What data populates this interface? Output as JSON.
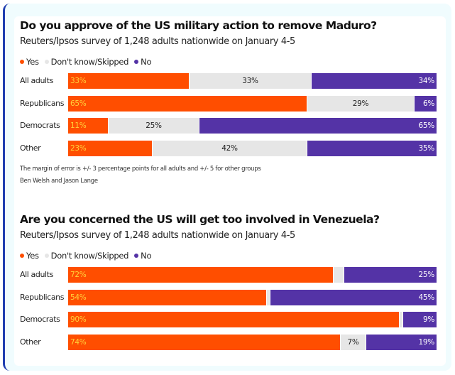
{
  "colors": {
    "yes": "#ff4e00",
    "dont_know": "#e6e6e6",
    "no": "#5433a6"
  },
  "legend": [
    {
      "key": "yes",
      "label": "Yes"
    },
    {
      "key": "dont_know",
      "label": "Don't know/Skipped"
    },
    {
      "key": "no",
      "label": "No"
    }
  ],
  "chart_data": [
    {
      "type": "bar",
      "orientation": "horizontal-stacked-100",
      "title": "Do you approve of the US military action to remove Maduro?",
      "subtitle": "Reuters/Ipsos survey of 1,248 adults nationwide on January 4-5",
      "legend_position": "top-left",
      "categories": [
        "All adults",
        "Republicans",
        "Democrats",
        "Other"
      ],
      "series": [
        {
          "name": "Yes",
          "key": "yes",
          "values": [
            33,
            65,
            11,
            23
          ]
        },
        {
          "name": "Don't know/Skipped",
          "key": "dont_know",
          "values": [
            33,
            29,
            25,
            42
          ]
        },
        {
          "name": "No",
          "key": "no",
          "values": [
            34,
            6,
            65,
            35
          ]
        }
      ],
      "labels": {
        "yes": [
          "33%",
          "65%",
          "11%",
          "23%"
        ],
        "dont_know": [
          "33%",
          "29%",
          "25%",
          "42%"
        ],
        "no": [
          "34%",
          "6%",
          "65%",
          "35%"
        ]
      },
      "notes": [
        "The margin of error is +/- 3 percentage points for all adults and +/- 5 for other groups",
        "Ben Welsh and Jason Lange"
      ],
      "xlim": [
        0,
        100
      ]
    },
    {
      "type": "bar",
      "orientation": "horizontal-stacked-100",
      "title": "Are you concerned the US will get too involved in Venezuela?",
      "subtitle": "Reuters/Ipsos survey of 1,248 adults nationwide on January 4-5",
      "legend_position": "top-left",
      "categories": [
        "All adults",
        "Republicans",
        "Democrats",
        "Other"
      ],
      "series": [
        {
          "name": "Yes",
          "key": "yes",
          "values": [
            72,
            54,
            90,
            74
          ]
        },
        {
          "name": "Don't know/Skipped",
          "key": "dont_know",
          "values": [
            3,
            1,
            1,
            7
          ]
        },
        {
          "name": "No",
          "key": "no",
          "values": [
            25,
            45,
            9,
            19
          ]
        }
      ],
      "labels": {
        "yes": [
          "72%",
          "54%",
          "90%",
          "74%"
        ],
        "dont_know": [
          "",
          "",
          "",
          "7%"
        ],
        "no": [
          "25%",
          "45%",
          "9%",
          "19%"
        ]
      },
      "notes": [],
      "xlim": [
        0,
        100
      ]
    }
  ]
}
